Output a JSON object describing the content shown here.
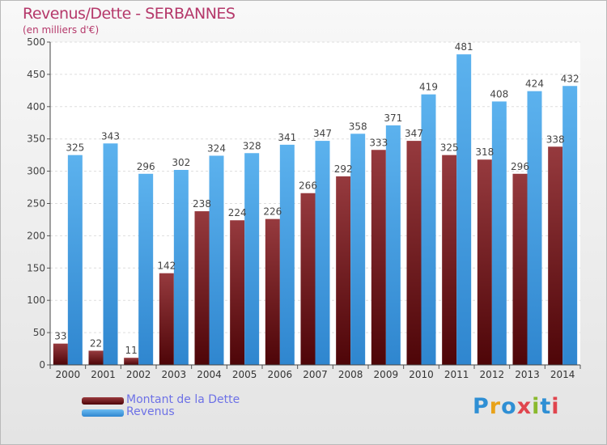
{
  "header": {
    "title": "Revenus/Dette - SERBANNES",
    "subtitle": "(en milliers d'€)"
  },
  "legend": {
    "items": [
      {
        "label": "Montant de la Dette",
        "color": "#7a1a20"
      },
      {
        "label": "Revenus",
        "color": "#4aa3e6"
      }
    ]
  },
  "logo": {
    "text": "Proxiti",
    "letter_colors": [
      "#2f8fd4",
      "#e8a21a",
      "#2f8fd4",
      "#e0454e",
      "#8ab92d",
      "#2f8fd4",
      "#e0454e"
    ]
  },
  "chart_data": {
    "type": "bar",
    "title": "Revenus/Dette - SERBANNES",
    "subtitle": "(en milliers d'€)",
    "categories": [
      "2000",
      "2001",
      "2002",
      "2003",
      "2004",
      "2005",
      "2006",
      "2007",
      "2008",
      "2009",
      "2010",
      "2011",
      "2012",
      "2013",
      "2014"
    ],
    "series": [
      {
        "name": "Montant de la Dette",
        "color": "#7a1a20",
        "values": [
          33,
          22,
          11,
          142,
          238,
          224,
          226,
          266,
          292,
          333,
          347,
          325,
          318,
          296,
          338
        ]
      },
      {
        "name": "Revenus",
        "color": "#4aa3e6",
        "values": [
          325,
          343,
          296,
          302,
          324,
          328,
          341,
          347,
          358,
          371,
          419,
          481,
          408,
          424,
          432
        ]
      }
    ],
    "yticks": [
      0,
      50,
      100,
      150,
      200,
      250,
      300,
      350,
      400,
      450,
      500
    ],
    "ylim": [
      0,
      500
    ],
    "grid": true,
    "legend_position": "bottom-left"
  }
}
